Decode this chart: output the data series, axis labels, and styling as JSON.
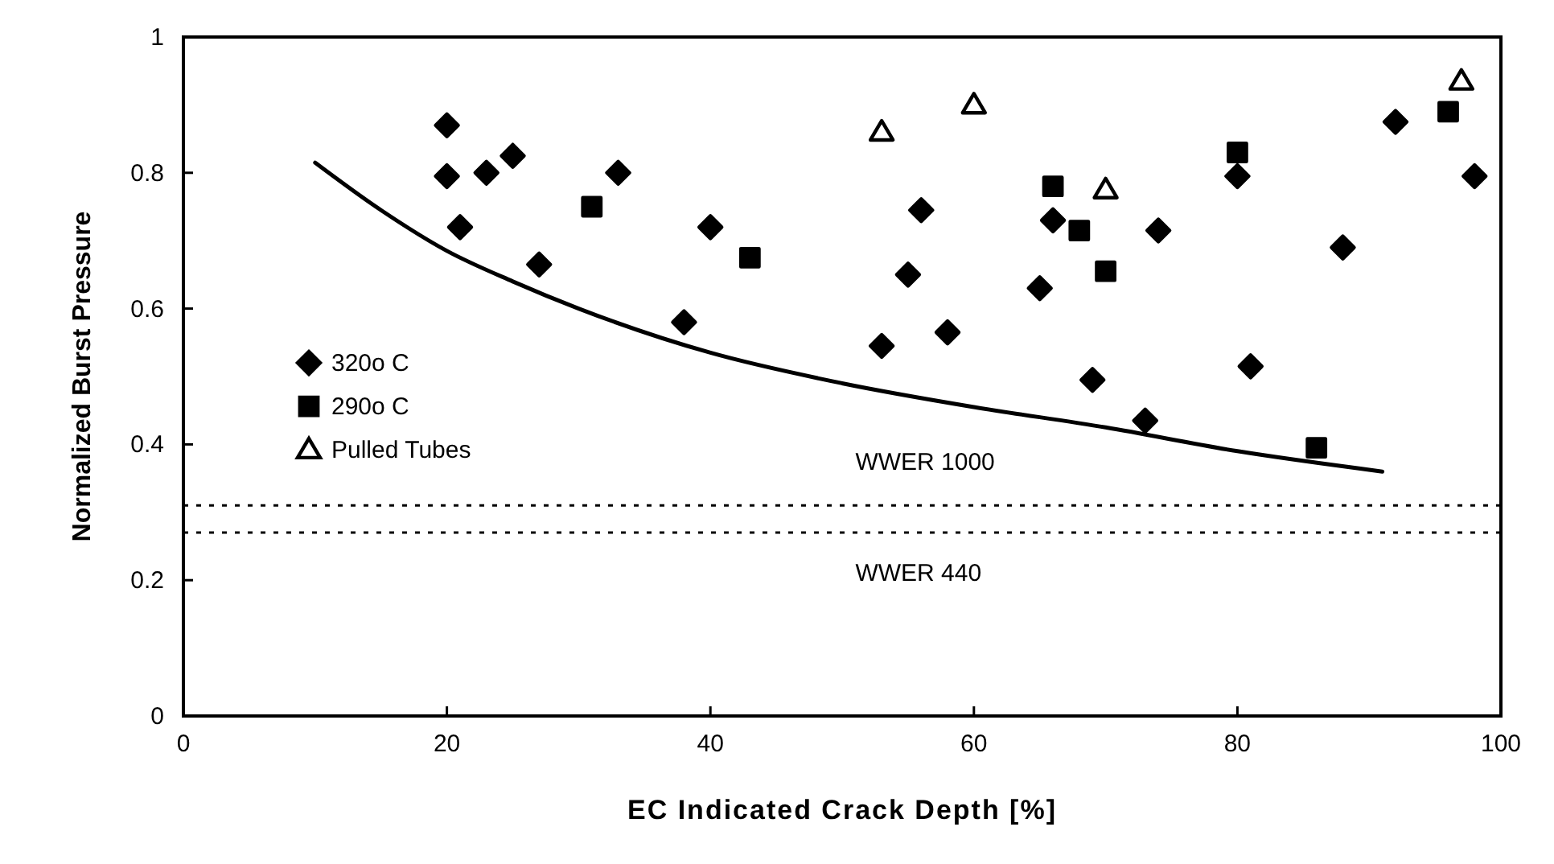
{
  "chart_data": {
    "type": "scatter",
    "xlabel": "EC Indicated Crack Depth  [%]",
    "ylabel": "Normalized Burst Pressure",
    "xlim": [
      0,
      100
    ],
    "ylim": [
      0,
      1
    ],
    "xticks": [
      0,
      20,
      40,
      60,
      80,
      100
    ],
    "yticks": [
      0,
      0.2,
      0.4,
      0.6,
      0.8,
      1
    ],
    "grid": false,
    "legend": "left",
    "series": [
      {
        "name": "320o C",
        "color": "#000000",
        "marker": "diamond",
        "x": [
          20,
          20,
          21,
          23,
          25,
          27,
          33,
          38,
          40,
          53,
          55,
          56,
          58,
          65,
          66,
          69,
          73,
          74,
          80,
          81,
          88,
          92,
          98
        ],
        "values": [
          0.87,
          0.795,
          0.72,
          0.8,
          0.825,
          0.665,
          0.8,
          0.58,
          0.72,
          0.545,
          0.65,
          0.745,
          0.565,
          0.63,
          0.73,
          0.495,
          0.435,
          0.715,
          0.795,
          0.515,
          0.69,
          0.875,
          0.795
        ]
      },
      {
        "name": "290o C",
        "color": "#000000",
        "marker": "square",
        "x": [
          31,
          43,
          66,
          68,
          70,
          80,
          86,
          96
        ],
        "values": [
          0.75,
          0.675,
          0.78,
          0.715,
          0.655,
          0.83,
          0.395,
          0.89
        ]
      },
      {
        "name": "Pulled Tubes",
        "color": "#000000",
        "marker": "triangle",
        "x": [
          53,
          60,
          70,
          97
        ],
        "values": [
          0.86,
          0.9,
          0.775,
          0.935
        ]
      },
      {
        "type": "line",
        "color": "#000000",
        "line_style": "solid",
        "marker": "none",
        "x": [
          10,
          15,
          20,
          25,
          30,
          40,
          50,
          60,
          70,
          80,
          91
        ],
        "values": [
          0.815,
          0.745,
          0.685,
          0.64,
          0.6,
          0.535,
          0.49,
          0.455,
          0.425,
          0.39,
          0.36
        ]
      }
    ],
    "ref_lines": [
      {
        "axis": "y",
        "value": 0.31,
        "label": "WWER 1000",
        "line_style": "dotted",
        "color": "#000000"
      },
      {
        "axis": "y",
        "value": 0.27,
        "label": "WWER 440",
        "line_style": "dotted",
        "color": "#000000"
      }
    ]
  }
}
